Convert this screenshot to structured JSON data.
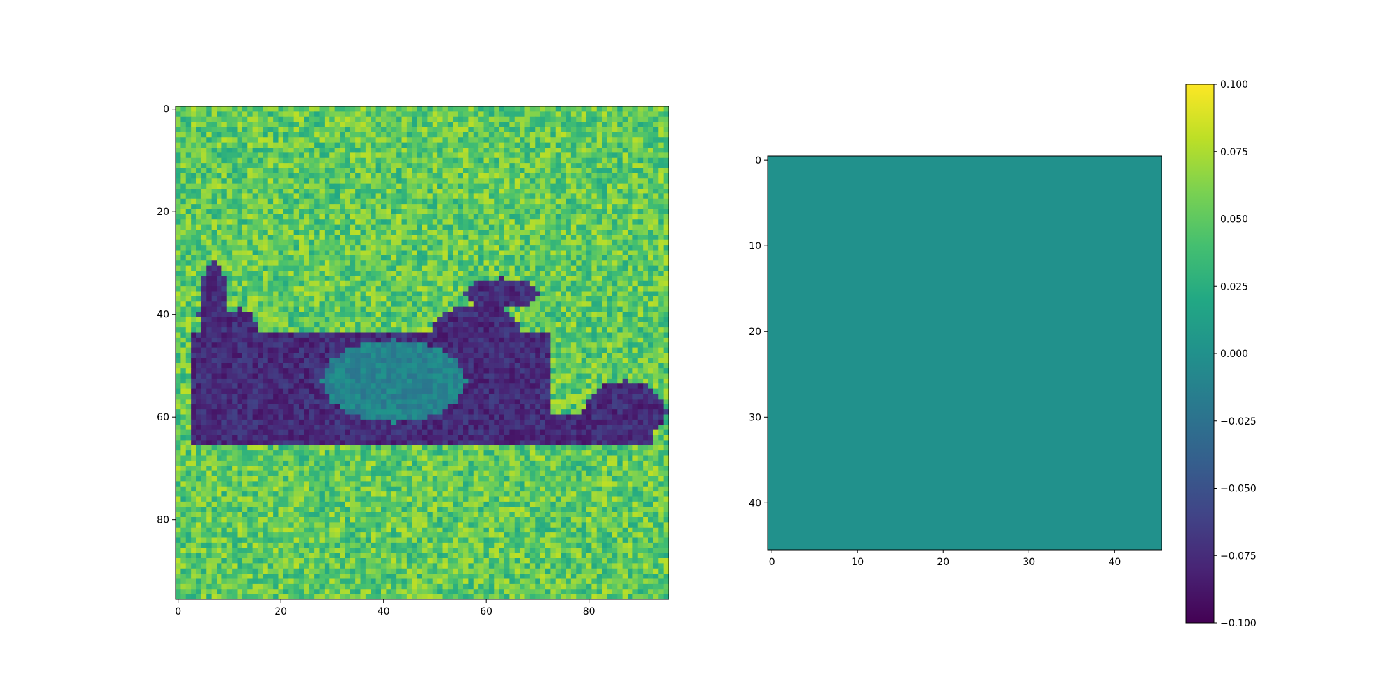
{
  "chart_data": [
    {
      "type": "heatmap",
      "title": "",
      "xlabel": "",
      "ylabel": "",
      "image_shape": [
        96,
        96
      ],
      "colormap": "viridis",
      "content": "grayscale photograph of an animal rolling on its back in grass, rendered as a heatmap",
      "xlim": [
        -0.5,
        95.5
      ],
      "ylim": [
        95.5,
        -0.5
      ],
      "x_ticks": [
        0,
        20,
        40,
        60,
        80
      ],
      "y_ticks": [
        0,
        20,
        40,
        60,
        80
      ],
      "x_tick_labels": [
        "0",
        "20",
        "40",
        "60",
        "80"
      ],
      "y_tick_labels": [
        "0",
        "20",
        "40",
        "60",
        "80"
      ],
      "colorbar": false
    },
    {
      "type": "heatmap",
      "title": "",
      "xlabel": "",
      "ylabel": "",
      "image_shape": [
        46,
        46
      ],
      "colormap": "viridis",
      "uniform_value": 0.0,
      "fill_color": "#21918c",
      "xlim": [
        -0.5,
        45.5
      ],
      "ylim": [
        45.5,
        -0.5
      ],
      "x_ticks": [
        0,
        10,
        20,
        30,
        40
      ],
      "y_ticks": [
        0,
        10,
        20,
        30,
        40
      ],
      "x_tick_labels": [
        "0",
        "10",
        "20",
        "30",
        "40"
      ],
      "y_tick_labels": [
        "0",
        "10",
        "20",
        "30",
        "40"
      ],
      "colorbar": {
        "range": [
          -0.1,
          0.1
        ],
        "ticks": [
          0.1,
          0.075,
          0.05,
          0.025,
          0.0,
          -0.025,
          -0.05,
          -0.075,
          -0.1
        ],
        "tick_labels": [
          "0.100",
          "0.075",
          "0.050",
          "0.025",
          "0.000",
          "−0.025",
          "−0.050",
          "−0.075",
          "−0.100"
        ]
      }
    }
  ]
}
